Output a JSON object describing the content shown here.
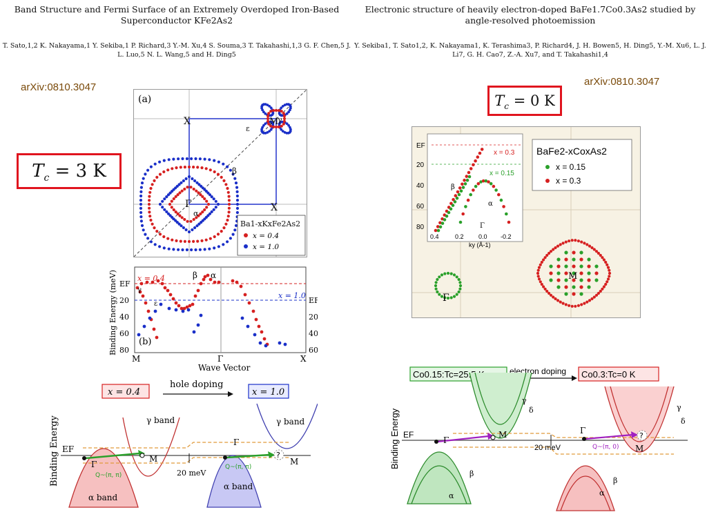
{
  "left": {
    "title": "Band Structure and Fermi Surface of an Extremely Overdoped Iron-Based Superconductor KFe2As2",
    "authors": "T. Sato,1,2 K. Nakayama,1 Y. Sekiba,1 P. Richard,3 Y.-M. Xu,4 S. Souma,3 T. Takahashi,1,3 G. F. Chen,5 J. L. Luo,5 N. L. Wang,5 and H. Ding5",
    "arxiv": "arXiv:0810.3047",
    "tc": "T",
    "tc_sub": "c",
    "tc_value": " = 3 K",
    "panel_a": {
      "label": "(a)",
      "X_top": "X",
      "X_bottom": "X",
      "M": "M",
      "gamma": "γ",
      "epsilon": "ε",
      "beta": "β",
      "Gamma": "Γ",
      "alpha": "α",
      "legend_title": "Ba1-xKxFe2As2",
      "legend_1": "x = 0.4",
      "legend_2": "x = 1.0"
    },
    "panel_b": {
      "label": "(b)",
      "ylabel": "Binding Energy (meV)",
      "xlabel": "Wave Vector",
      "x_ticks": [
        "M",
        "Γ",
        "X"
      ],
      "y_ticks": [
        "EF",
        "20",
        "40",
        "60",
        "80"
      ],
      "y2_ticks": [
        "EF",
        "20",
        "40",
        "60"
      ],
      "x04": "x = 0.4",
      "x10": "x = 1.0",
      "beta": "β",
      "alpha": "α",
      "gamma": "γ",
      "epsilon": "ε"
    },
    "schematic": {
      "x04": "x = 0.4",
      "x10": "x = 1.0",
      "hole_doping": "hole doping",
      "ylabel": "Binding Energy",
      "EF": "EF",
      "Gamma": "Γ",
      "M": "M",
      "gamma_band": "γ band",
      "alpha_band": "α band",
      "Q": "Q~(π, π)",
      "mev": "20 meV",
      "q_mark": "?"
    }
  },
  "right": {
    "title": "Electronic structure of heavily electron-doped BaFe1.7Co0.3As2 studied by angle-resolved photoemission",
    "authors": "Y. Sekiba1, T. Sato1,2, K. Nakayama1, K. Terashima3, P. Richard4, J. H. Bowen5, H. Ding5, Y.-M. Xu6, L. J. Li7, G. H. Cao7, Z.-A. Xu7, and T. Takahashi1,4",
    "arxiv": "arXiv:0810.3047",
    "tc": "T",
    "tc_sub": "c",
    "tc_value": " = 0 K",
    "fig": {
      "EF": "EF",
      "y_ticks": [
        "20",
        "40",
        "60",
        "80"
      ],
      "x_ticks": [
        "0.4",
        "0.2",
        "0.0",
        "-0.2"
      ],
      "xlabel": "ky (Å-1)",
      "x03": "x = 0.3",
      "x015": "x = 0.15",
      "beta": "β",
      "alpha": "α",
      "Gamma_inset": "Γ",
      "legend_title": "BaFe2-xCoxAs2",
      "legend_1": "x = 0.15",
      "legend_2": "x = 0.3",
      "Gamma": "Γ",
      "M": "M"
    },
    "schematic": {
      "co015": "Co0.15:Tc=25.5 K",
      "electron_doping": "electron doping",
      "co03": "Co0.3:Tc=0 K",
      "ylabel": "Binding Energy",
      "EF": "EF",
      "Gamma": "Γ",
      "M": "M",
      "mev": "20 meV",
      "gamma": "γ",
      "delta": "δ",
      "alpha": "α",
      "beta": "β",
      "Q": "Q~(π, 0)",
      "q_mark": "?"
    }
  },
  "colors": {
    "red": "#d62020",
    "blue": "#1a2fc8",
    "green": "#2aa02a",
    "box_red": "#e0141e",
    "fig_bg": "#f7f2e4"
  }
}
